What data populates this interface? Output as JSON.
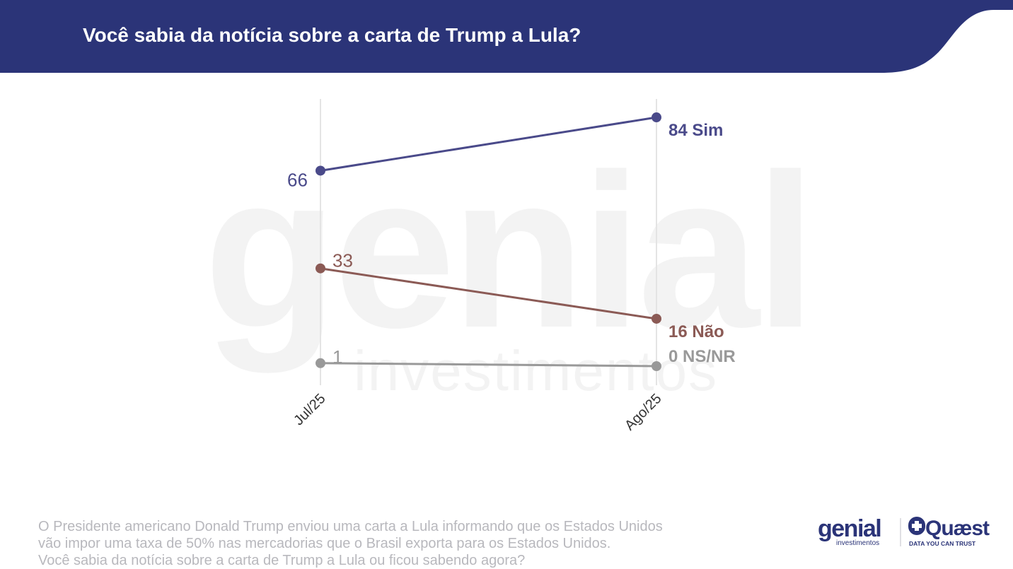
{
  "header": {
    "title": "Você sabia da notícia sobre a carta de Trump a Lula?"
  },
  "chart_data": {
    "type": "line",
    "categories": [
      "Jul/25",
      "Ago/25"
    ],
    "ylim": [
      0,
      90
    ],
    "series": [
      {
        "name": "Sim",
        "values": [
          66,
          84
        ],
        "color": "#4a4a8a",
        "end_label": "84 Sim",
        "start_label": "66"
      },
      {
        "name": "Não",
        "values": [
          33,
          16
        ],
        "color": "#8b5a55",
        "end_label": "16 Não",
        "start_label": "33"
      },
      {
        "name": "NS/NR",
        "values": [
          1,
          0
        ],
        "color": "#999999",
        "end_label": "0 NS/NR",
        "start_label": "1"
      }
    ],
    "grid": "vertical",
    "legend": "none"
  },
  "footnote": {
    "lines": [
      "O Presidente americano Donald Trump enviou uma carta a Lula informando que os Estados Unidos",
      "vão impor uma taxa de 50% nas mercadorias que o Brasil exporta para os Estados Unidos.",
      "Você sabia da notícia sobre a carta de Trump a Lula ou ficou sabendo agora?"
    ]
  },
  "watermark": {
    "brand": "genial",
    "sub": "investimentos"
  },
  "logos": {
    "genial": "genial",
    "genial_sub": "investimentos",
    "quaest": "Quæst",
    "quaest_tagline": "DATA YOU CAN TRUST"
  },
  "colors": {
    "header": "#2b3478",
    "sim": "#4a4a8a",
    "nao": "#8b5a55",
    "nsnr": "#999999",
    "footnote": "#b8b8bd"
  }
}
